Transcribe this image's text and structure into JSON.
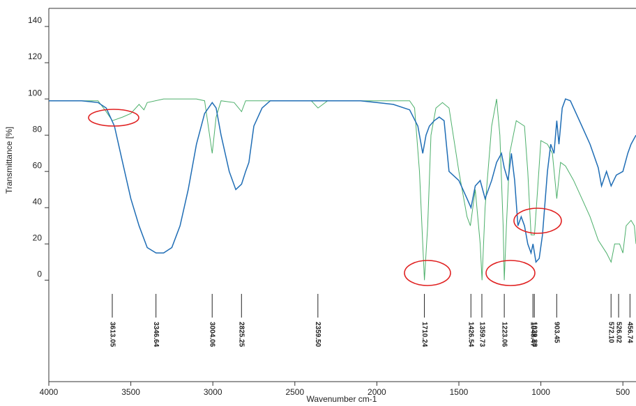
{
  "chart_data": {
    "type": "line",
    "xlabel": "Wavenumber cm-1",
    "ylabel": "Transmittance [%]",
    "xlim": [
      4000,
      420
    ],
    "ylim": [
      -56,
      150
    ],
    "xticks": [
      4000,
      3500,
      3000,
      2500,
      2000,
      1500,
      1000,
      500
    ],
    "yticks": [
      0,
      20,
      40,
      60,
      80,
      100,
      120,
      140
    ],
    "peaks": [
      3613.05,
      3346.64,
      3004.06,
      2825.25,
      {
        "value": 2359.5,
        "label": "2359.50"
      },
      1710.24,
      1426.54,
      1359.73,
      1223.06,
      1048.47,
      1039.88,
      903.45,
      {
        "value": 572.1,
        "label": "572.10"
      },
      526.02,
      456.74
    ],
    "series": [
      {
        "color": "#1f6db5",
        "x": [
          4000,
          3800,
          3700,
          3650,
          3600,
          3550,
          3500,
          3450,
          3400,
          3346,
          3300,
          3250,
          3200,
          3150,
          3100,
          3050,
          3004,
          2980,
          2950,
          2900,
          2860,
          2825,
          2800,
          2780,
          2750,
          2700,
          2650,
          2500,
          2300,
          2100,
          2000,
          1900,
          1800,
          1750,
          1720,
          1700,
          1680,
          1650,
          1620,
          1590,
          1560,
          1500,
          1450,
          1426,
          1400,
          1370,
          1340,
          1300,
          1270,
          1240,
          1223,
          1200,
          1180,
          1160,
          1140,
          1120,
          1100,
          1080,
          1060,
          1048,
          1030,
          1010,
          990,
          960,
          940,
          920,
          903,
          890,
          870,
          850,
          820,
          800,
          750,
          700,
          650,
          630,
          600,
          572,
          540,
          500,
          470,
          450,
          420
        ],
        "values": [
          99,
          99,
          98,
          95,
          85,
          65,
          45,
          30,
          18,
          15,
          15,
          18,
          30,
          50,
          75,
          92,
          98,
          95,
          80,
          60,
          50,
          53,
          60,
          65,
          85,
          95,
          99,
          99,
          99,
          99,
          98,
          97,
          94,
          85,
          70,
          80,
          85,
          88,
          90,
          88,
          60,
          55,
          45,
          40,
          52,
          55,
          45,
          55,
          65,
          70,
          62,
          55,
          70,
          55,
          30,
          35,
          30,
          20,
          15,
          20,
          10,
          12,
          25,
          60,
          75,
          70,
          88,
          75,
          95,
          100,
          99,
          95,
          85,
          75,
          62,
          52,
          60,
          52,
          58,
          60,
          70,
          75,
          80
        ]
      },
      {
        "color": "#4caf6a",
        "x": [
          4000,
          3700,
          3650,
          3613,
          3550,
          3500,
          3450,
          3420,
          3400,
          3300,
          3100,
          3050,
          3004,
          2980,
          2950,
          2870,
          2825,
          2800,
          2500,
          2400,
          2359,
          2300,
          1800,
          1770,
          1740,
          1720,
          1710,
          1690,
          1670,
          1640,
          1600,
          1560,
          1500,
          1450,
          1430,
          1400,
          1370,
          1359,
          1340,
          1300,
          1270,
          1250,
          1230,
          1223,
          1210,
          1190,
          1150,
          1100,
          1080,
          1060,
          1048,
          1039,
          1020,
          1000,
          960,
          930,
          903,
          880,
          850,
          800,
          750,
          700,
          650,
          600,
          572,
          550,
          520,
          500,
          480,
          450,
          430,
          420
        ],
        "values": [
          99,
          99,
          93,
          88,
          90,
          92,
          97,
          94,
          98,
          100,
          100,
          99,
          70,
          90,
          99,
          98,
          93,
          99,
          99,
          99,
          95,
          99,
          99,
          95,
          60,
          20,
          0,
          30,
          80,
          95,
          98,
          95,
          60,
          35,
          30,
          50,
          20,
          0,
          40,
          85,
          100,
          80,
          30,
          0,
          30,
          70,
          88,
          85,
          60,
          25,
          25,
          25,
          50,
          77,
          75,
          70,
          45,
          65,
          63,
          55,
          45,
          35,
          22,
          15,
          10,
          20,
          20,
          15,
          30,
          33,
          30,
          20
        ]
      }
    ]
  }
}
